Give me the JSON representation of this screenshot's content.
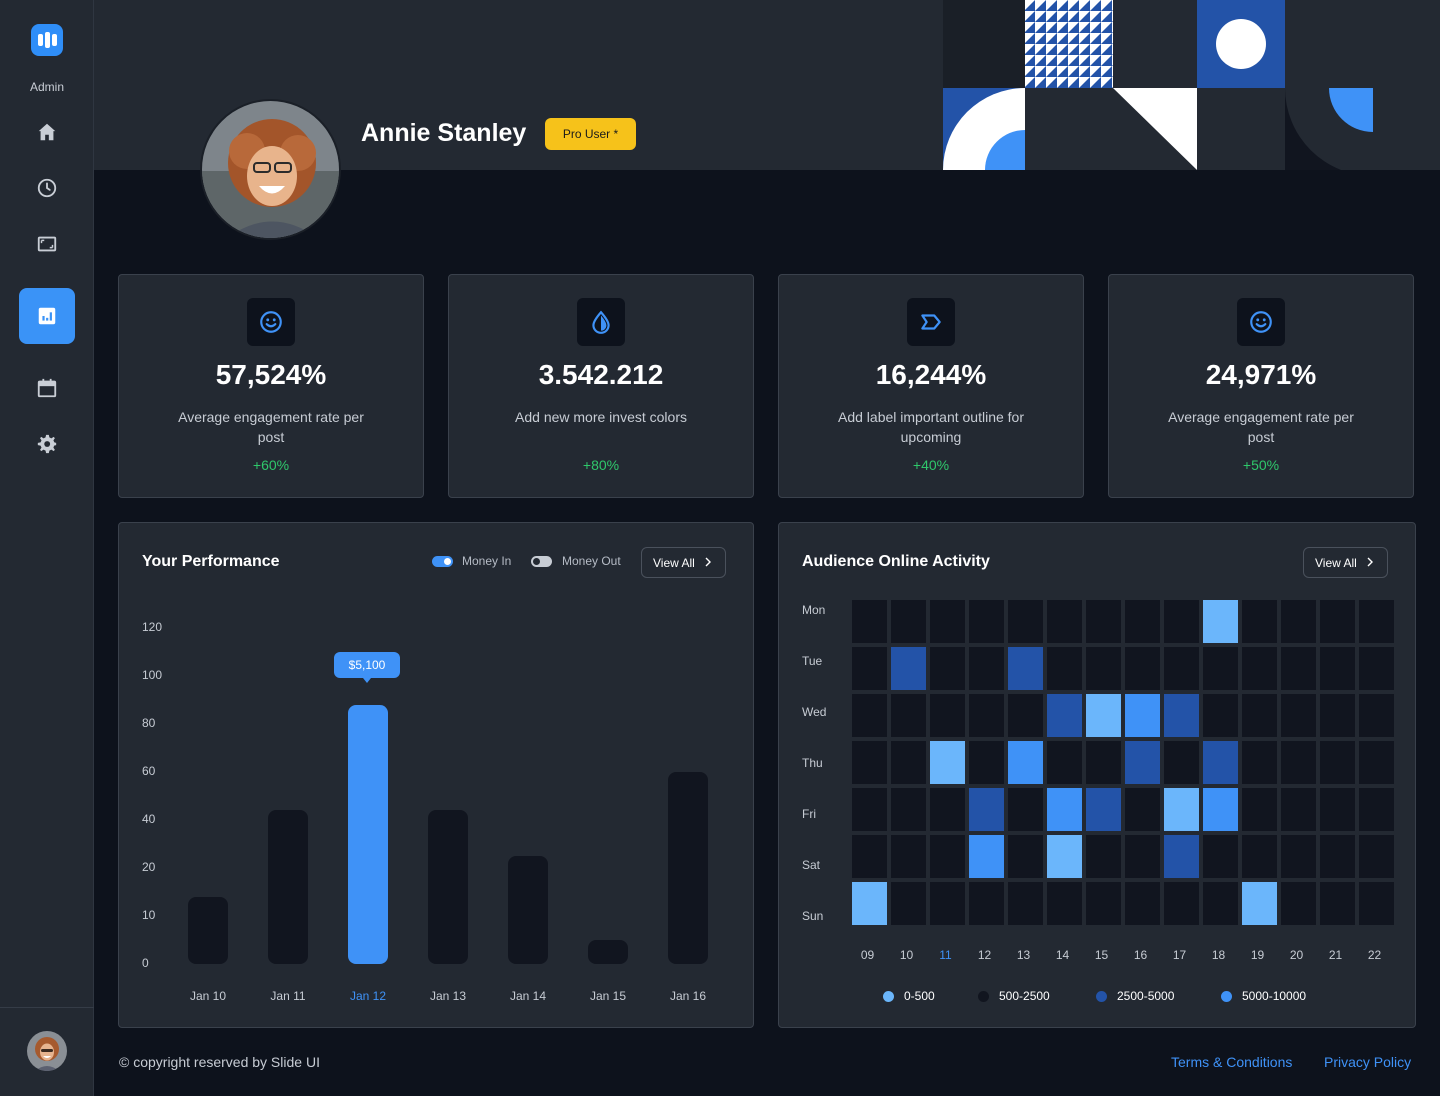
{
  "sidebar": {
    "brand_label": "Admin",
    "nav": [
      {
        "name": "home",
        "icon": "home-icon"
      },
      {
        "name": "history",
        "icon": "clock-icon"
      },
      {
        "name": "media",
        "icon": "image-frame-icon"
      },
      {
        "name": "analytics",
        "icon": "chart-icon",
        "active": true
      },
      {
        "name": "calendar",
        "icon": "calendar-icon"
      },
      {
        "name": "settings",
        "icon": "gear-icon"
      }
    ]
  },
  "profile": {
    "name": "Annie Stanley",
    "badge": "Pro User *"
  },
  "stats": [
    {
      "icon": "smiley-icon",
      "value": "57,524%",
      "label": "Average engagement rate per post",
      "change": "+60%"
    },
    {
      "icon": "drop-icon",
      "value": "3.542.212",
      "label": "Add new more invest colors",
      "change": "+80%"
    },
    {
      "icon": "label-tag-icon",
      "value": "16,244%",
      "label": "Add label important outline for upcoming",
      "change": "+40%"
    },
    {
      "icon": "smiley-icon",
      "value": "24,971%",
      "label": "Average engagement rate per post",
      "change": "+50%"
    }
  ],
  "performance": {
    "title": "Your Performance",
    "toggles": [
      {
        "label": "Money In",
        "on": true
      },
      {
        "label": "Money Out",
        "on": false
      }
    ],
    "view_all": "View All"
  },
  "audience": {
    "title": "Audience Online Activity",
    "view_all": "View All",
    "days": [
      "Mon",
      "Tue",
      "Wed",
      "Thu",
      "Fri",
      "Sat",
      "Sun"
    ],
    "hours": [
      "09",
      "10",
      "11",
      "12",
      "13",
      "14",
      "15",
      "16",
      "17",
      "18",
      "19",
      "20",
      "21",
      "22"
    ],
    "highlight_hour": "11",
    "legend": [
      {
        "label": "0-500",
        "color": "#6bb6fb"
      },
      {
        "label": "500-2500",
        "color": "#11151f"
      },
      {
        "label": "2500-5000",
        "color": "#2353a8"
      },
      {
        "label": "5000-10000",
        "color": "#3f92f7"
      }
    ],
    "levels": [
      [
        0,
        0,
        0,
        0,
        0,
        0,
        0,
        0,
        0,
        1,
        0,
        0,
        0,
        0
      ],
      [
        0,
        2,
        0,
        0,
        2,
        0,
        0,
        0,
        0,
        0,
        0,
        0,
        0,
        0
      ],
      [
        0,
        0,
        0,
        0,
        0,
        2,
        1,
        3,
        2,
        0,
        0,
        0,
        0,
        0
      ],
      [
        0,
        0,
        1,
        0,
        3,
        0,
        0,
        2,
        0,
        2,
        0,
        0,
        0,
        0
      ],
      [
        0,
        0,
        0,
        2,
        0,
        3,
        2,
        0,
        1,
        3,
        0,
        0,
        0,
        0
      ],
      [
        0,
        0,
        0,
        3,
        0,
        1,
        0,
        0,
        2,
        0,
        0,
        0,
        0,
        0
      ],
      [
        1,
        0,
        0,
        0,
        0,
        0,
        0,
        0,
        0,
        0,
        1,
        0,
        0,
        0
      ]
    ]
  },
  "chart_data": {
    "type": "bar",
    "title": "Your Performance",
    "categories": [
      "Jan 10",
      "Jan 11",
      "Jan 12",
      "Jan 13",
      "Jan 14",
      "Jan 15",
      "Jan 16"
    ],
    "values": [
      14,
      44,
      88,
      44,
      25,
      5,
      60
    ],
    "y_ticks": [
      0,
      10,
      20,
      40,
      60,
      80,
      100,
      120
    ],
    "highlight_index": 2,
    "tooltip": "$5,100",
    "xlabel": "",
    "ylabel": ""
  },
  "footer": {
    "copyright": "© copyright reserved by Slide UI",
    "terms": "Terms & Conditions",
    "privacy": "Privacy Policy"
  },
  "colors": {
    "accent": "#3f92f7",
    "positive": "#2fc76b",
    "badge": "#f6c21a"
  }
}
